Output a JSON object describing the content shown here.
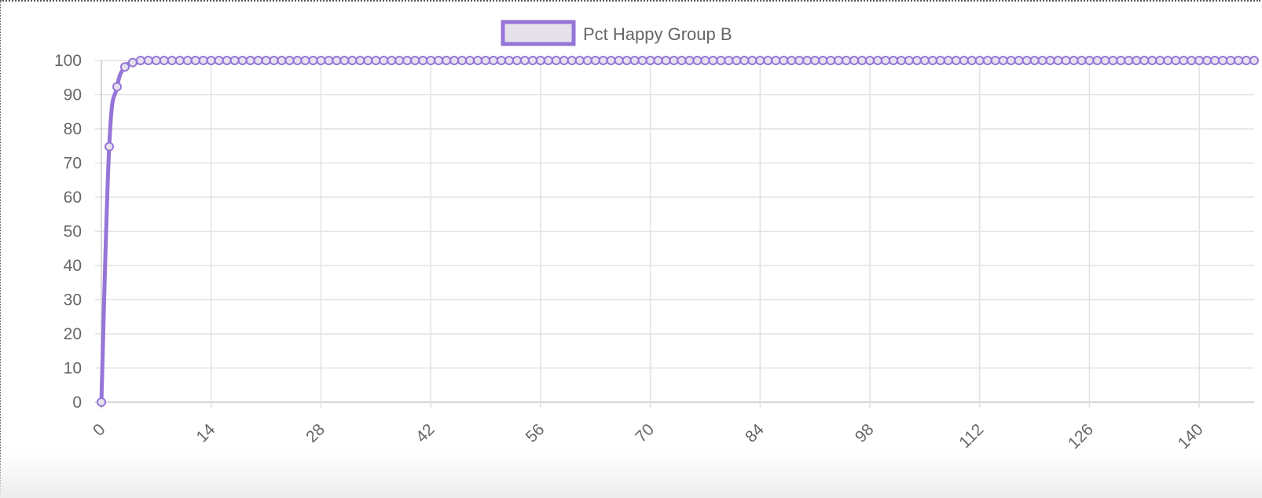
{
  "chart_data": {
    "type": "line",
    "title": "",
    "xlabel": "",
    "ylabel": "",
    "legend": {
      "position": "top-center"
    },
    "grid": true,
    "colors": {
      "series": "#9575d8",
      "series_fill": "#e6e2ec",
      "grid": "#e2e2e2",
      "tick_text": "#666666"
    },
    "xlim": [
      0,
      147
    ],
    "ylim": [
      0,
      100
    ],
    "x_ticks": [
      "0",
      "14",
      "28",
      "42",
      "56",
      "70",
      "84",
      "98",
      "112",
      "126",
      "140"
    ],
    "y_ticks": [
      "0",
      "10",
      "20",
      "30",
      "40",
      "50",
      "60",
      "70",
      "80",
      "90",
      "100"
    ],
    "series": [
      {
        "name": "Pct Happy Group B",
        "x": [
          0,
          1,
          2,
          3,
          4,
          5,
          6,
          7,
          8,
          9,
          10,
          11,
          12,
          13,
          14,
          15,
          16,
          17,
          18,
          19,
          20,
          21,
          22,
          23,
          24,
          25,
          26,
          27,
          28,
          29,
          30,
          31,
          32,
          33,
          34,
          35,
          36,
          37,
          38,
          39,
          40,
          41,
          42,
          43,
          44,
          45,
          46,
          47,
          48,
          49,
          50,
          51,
          52,
          53,
          54,
          55,
          56,
          57,
          58,
          59,
          60,
          61,
          62,
          63,
          64,
          65,
          66,
          67,
          68,
          69,
          70,
          71,
          72,
          73,
          74,
          75,
          76,
          77,
          78,
          79,
          80,
          81,
          82,
          83,
          84,
          85,
          86,
          87,
          88,
          89,
          90,
          91,
          92,
          93,
          94,
          95,
          96,
          97,
          98,
          99,
          100,
          101,
          102,
          103,
          104,
          105,
          106,
          107,
          108,
          109,
          110,
          111,
          112,
          113,
          114,
          115,
          116,
          117,
          118,
          119,
          120,
          121,
          122,
          123,
          124,
          125,
          126,
          127,
          128,
          129,
          130,
          131,
          132,
          133,
          134,
          135,
          136,
          137,
          138,
          139,
          140,
          141,
          142,
          143,
          144,
          145,
          146,
          147
        ],
        "values": [
          0,
          74.8,
          92.3,
          98.1,
          99.4,
          100,
          100,
          100,
          100,
          100,
          100,
          100,
          100,
          100,
          100,
          100,
          100,
          100,
          100,
          100,
          100,
          100,
          100,
          100,
          100,
          100,
          100,
          100,
          100,
          100,
          100,
          100,
          100,
          100,
          100,
          100,
          100,
          100,
          100,
          100,
          100,
          100,
          100,
          100,
          100,
          100,
          100,
          100,
          100,
          100,
          100,
          100,
          100,
          100,
          100,
          100,
          100,
          100,
          100,
          100,
          100,
          100,
          100,
          100,
          100,
          100,
          100,
          100,
          100,
          100,
          100,
          100,
          100,
          100,
          100,
          100,
          100,
          100,
          100,
          100,
          100,
          100,
          100,
          100,
          100,
          100,
          100,
          100,
          100,
          100,
          100,
          100,
          100,
          100,
          100,
          100,
          100,
          100,
          100,
          100,
          100,
          100,
          100,
          100,
          100,
          100,
          100,
          100,
          100,
          100,
          100,
          100,
          100,
          100,
          100,
          100,
          100,
          100,
          100,
          100,
          100,
          100,
          100,
          100,
          100,
          100,
          100,
          100,
          100,
          100,
          100,
          100,
          100,
          100,
          100,
          100,
          100,
          100,
          100,
          100,
          100,
          100,
          100,
          100,
          100,
          100,
          100,
          100
        ]
      }
    ]
  }
}
